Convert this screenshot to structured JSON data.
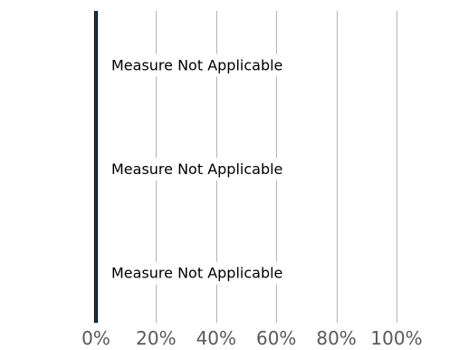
{
  "chart_data": {
    "type": "bar",
    "orientation": "horizontal",
    "title": "",
    "xlabel": "",
    "ylabel": "",
    "xlim": [
      0,
      100
    ],
    "x_ticks": [
      "0%",
      "20%",
      "40%",
      "60%",
      "80%",
      "100%"
    ],
    "tick_values": [
      0,
      20,
      40,
      60,
      80,
      100
    ],
    "grid": true,
    "legend": "none",
    "categories": [
      "",
      "",
      ""
    ],
    "values": [
      null,
      null,
      null
    ],
    "row_labels": [
      "Measure Not Applicable",
      "Measure Not Applicable",
      "Measure Not Applicable"
    ],
    "colors": {
      "axis": "#000000",
      "axis_accent": "#2a7ab8",
      "grid": "#b3b3b3",
      "tick_text": "#595959",
      "row_text": "#000000"
    }
  }
}
